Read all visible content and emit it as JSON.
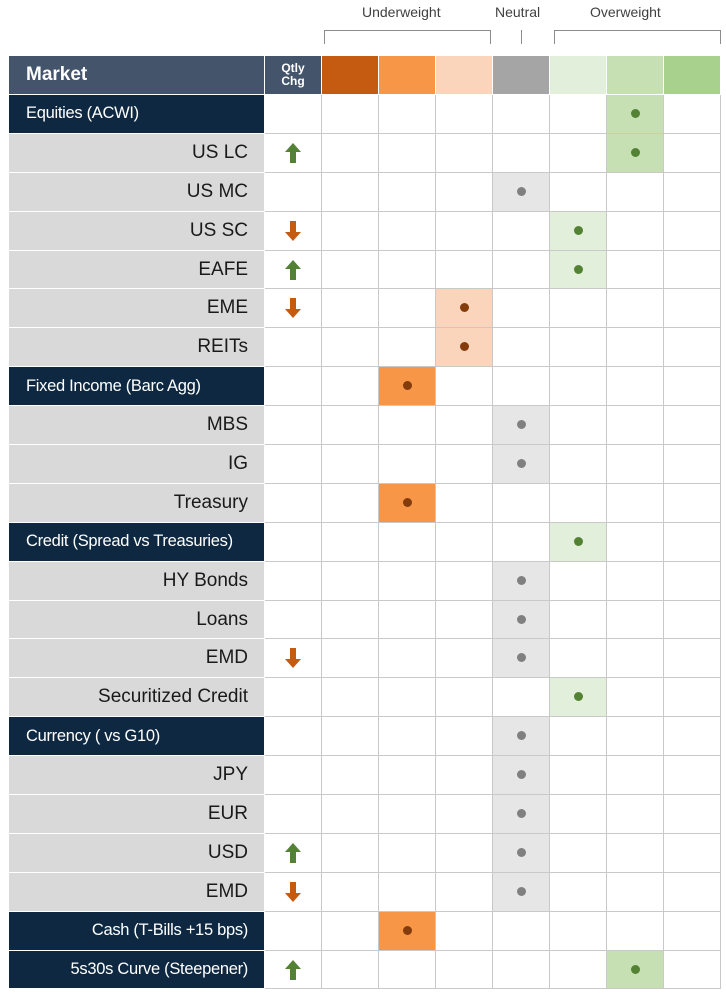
{
  "scale": {
    "underweight_label": "Underweight",
    "neutral_label": "Neutral",
    "overweight_label": "Overweight"
  },
  "header": {
    "market_label": "Market",
    "qtly_line1": "Qtly",
    "qtly_line2": "Chg"
  },
  "colors": {
    "strong_underweight": "#c55a11",
    "underweight": "#f79646",
    "slight_underweight": "#fbd5bb",
    "neutral": "#a5a5a5",
    "slight_overweight": "#e2efda",
    "overweight": "#c6e0b4",
    "strong_overweight": "#a9d18e",
    "neutral_fill": "#e7e6e6",
    "dot_under": "#843c0c",
    "dot_neutral": "#808080",
    "dot_over": "#548235",
    "arrow_up": "#548235",
    "arrow_down": "#c55a11"
  },
  "position_scale": [
    "strong underweight",
    "underweight",
    "slight underweight",
    "neutral",
    "slight overweight",
    "overweight",
    "strong overweight"
  ],
  "rows": [
    {
      "label": "Equities  (ACWI)",
      "type": "category",
      "change": "",
      "position": 6
    },
    {
      "label": "US LC",
      "type": "sub",
      "change": "up",
      "position": 6
    },
    {
      "label": "US MC",
      "type": "sub",
      "change": "",
      "position": 4
    },
    {
      "label": "US SC",
      "type": "sub",
      "change": "down",
      "position": 5
    },
    {
      "label": "EAFE",
      "type": "sub",
      "change": "up",
      "position": 5
    },
    {
      "label": "EME",
      "type": "sub",
      "change": "down",
      "position": 3
    },
    {
      "label": "REITs",
      "type": "sub",
      "change": "",
      "position": 3
    },
    {
      "label": "Fixed Income (Barc Agg)",
      "type": "category",
      "change": "",
      "position": 2
    },
    {
      "label": "MBS",
      "type": "sub",
      "change": "",
      "position": 4
    },
    {
      "label": "IG",
      "type": "sub",
      "change": "",
      "position": 4
    },
    {
      "label": "Treasury",
      "type": "sub",
      "change": "",
      "position": 2
    },
    {
      "label": "Credit (Spread vs Treasuries)",
      "type": "category",
      "change": "",
      "position": 5
    },
    {
      "label": "HY Bonds",
      "type": "sub",
      "change": "",
      "position": 4
    },
    {
      "label": "Loans",
      "type": "sub",
      "change": "",
      "position": 4
    },
    {
      "label": "EMD",
      "type": "sub",
      "change": "down",
      "position": 4
    },
    {
      "label": "Securitized Credit",
      "type": "sub",
      "change": "",
      "position": 5
    },
    {
      "label": "Currency ( vs G10)",
      "type": "category",
      "change": "",
      "position": 4
    },
    {
      "label": "JPY",
      "type": "sub",
      "change": "",
      "position": 4
    },
    {
      "label": "EUR",
      "type": "sub",
      "change": "",
      "position": 4
    },
    {
      "label": "USD",
      "type": "sub",
      "change": "up",
      "position": 4
    },
    {
      "label": "EMD",
      "type": "sub",
      "change": "down",
      "position": 4
    },
    {
      "label": "Cash (T-Bills +15 bps)",
      "type": "category-right",
      "change": "",
      "position": 2
    },
    {
      "label": "5s30s Curve (Steepener)",
      "type": "category-right",
      "change": "up",
      "position": 6
    }
  ]
}
